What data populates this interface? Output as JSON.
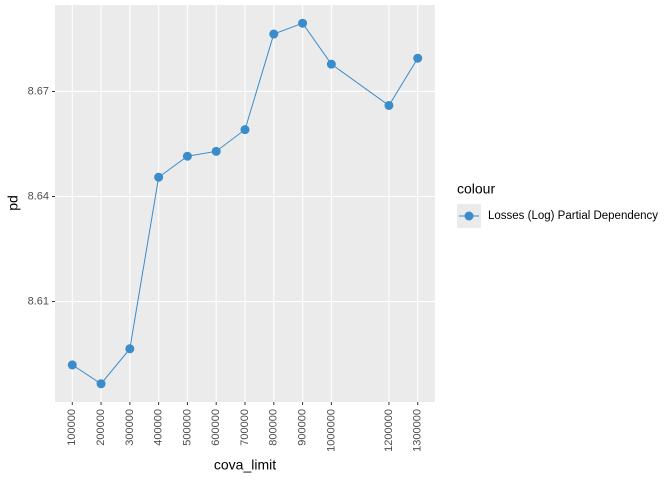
{
  "chart_data": {
    "type": "line",
    "x_label": "cova_limit",
    "y_label": "pd",
    "legend_title": "colour",
    "series": [
      {
        "name": "Losses (Log) Partial Dependency",
        "color": "#3a8ccb",
        "x": [
          100000,
          200000,
          300000,
          400000,
          500000,
          600000,
          700000,
          800000,
          900000,
          1000000,
          1200000,
          1300000
        ],
        "values": [
          8.5919,
          8.5865,
          8.5965,
          8.6455,
          8.6515,
          8.6529,
          8.6591,
          8.6864,
          8.6895,
          8.6778,
          8.666,
          8.6795
        ]
      }
    ],
    "xlim": [
      40000,
      1360000
    ],
    "xticks": [
      100000,
      200000,
      300000,
      400000,
      500000,
      600000,
      700000,
      800000,
      900000,
      1000000,
      1200000,
      1300000
    ],
    "ylim": [
      8.5813,
      8.6947
    ],
    "yticks": [
      8.61,
      8.64,
      8.67
    ],
    "grid": true,
    "legend_position": "right"
  }
}
